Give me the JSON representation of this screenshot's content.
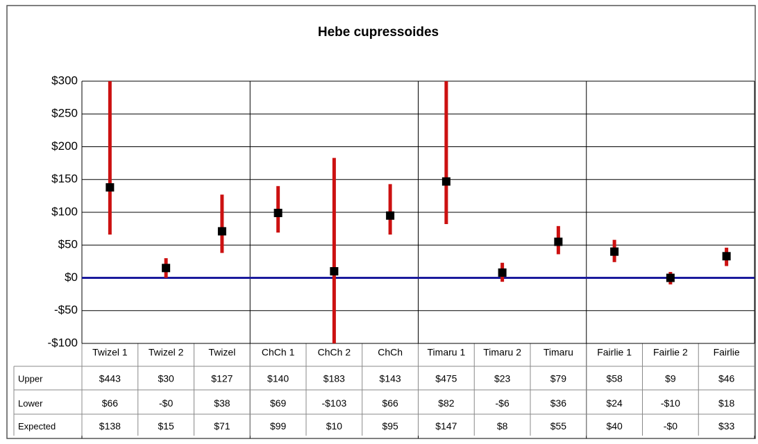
{
  "chart_data": {
    "type": "range",
    "title": "Hebe cupressoides",
    "categories": [
      "Twizel 1",
      "Twizel 2",
      "Twizel",
      "ChCh 1",
      "ChCh 2",
      "ChCh",
      "Timaru 1",
      "Timaru 2",
      "Timaru",
      "Fairlie 1",
      "Fairlie 2",
      "Fairlie"
    ],
    "series": [
      {
        "name": "Upper",
        "values": [
          443,
          30,
          127,
          140,
          183,
          143,
          475,
          23,
          79,
          58,
          9,
          46
        ],
        "value_labels": [
          "$443",
          "$30",
          "$127",
          "$140",
          "$183",
          "$143",
          "$475",
          "$23",
          "$79",
          "$58",
          "$9",
          "$46"
        ]
      },
      {
        "name": "Lower",
        "values": [
          66,
          0,
          38,
          69,
          -103,
          66,
          82,
          -6,
          36,
          24,
          -10,
          18
        ],
        "value_labels": [
          "$66",
          "-$0",
          "$38",
          "$69",
          "-$103",
          "$66",
          "$82",
          "-$6",
          "$36",
          "$24",
          "-$10",
          "$18"
        ]
      },
      {
        "name": "Expected",
        "values": [
          138,
          15,
          71,
          99,
          10,
          95,
          147,
          8,
          55,
          40,
          0,
          33
        ],
        "value_labels": [
          "$138",
          "$15",
          "$71",
          "$99",
          "$10",
          "$95",
          "$147",
          "$8",
          "$55",
          "$40",
          "-$0",
          "$33"
        ]
      }
    ],
    "range_color": "#cc1111",
    "marker_color": "#000000",
    "zero_line_color": "#1a1a9c",
    "ylim": [
      -100,
      300
    ],
    "yticks": [
      {
        "value": -100,
        "label": "-$100"
      },
      {
        "value": -50,
        "label": "-$50"
      },
      {
        "value": 0,
        "label": "$0"
      },
      {
        "value": 50,
        "label": "$50"
      },
      {
        "value": 100,
        "label": "$100"
      },
      {
        "value": 150,
        "label": "$150"
      },
      {
        "value": 200,
        "label": "$200"
      },
      {
        "value": 250,
        "label": "$250"
      },
      {
        "value": 300,
        "label": "$300"
      }
    ],
    "grid": true
  }
}
